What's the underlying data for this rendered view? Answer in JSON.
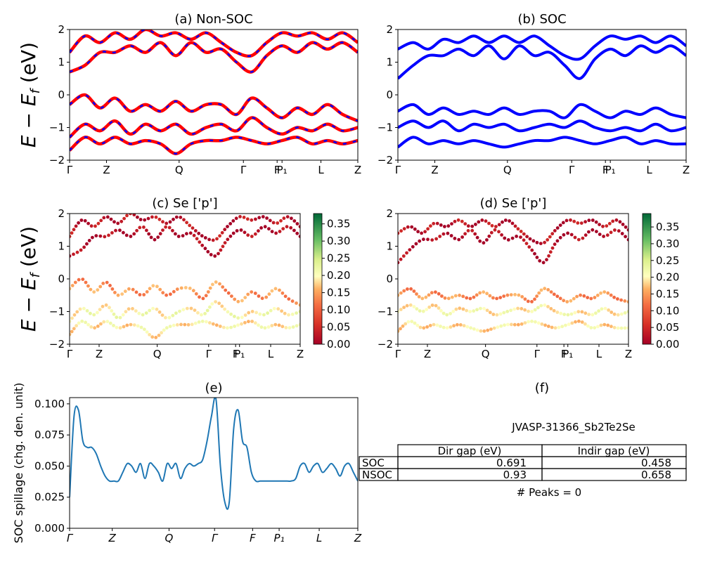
{
  "chart_data": [
    {
      "id": "a",
      "type": "line",
      "title": "(a) Non-SOC",
      "ylabel": "E − E_f (eV)",
      "ylim": [
        -2,
        2
      ],
      "yticks": [
        "2",
        "1",
        "0",
        "−1",
        "−2"
      ],
      "xtick_labels": [
        "Γ",
        "Z",
        "Q",
        "Γ",
        "F",
        "P₁",
        "L",
        "Z"
      ],
      "series": [
        {
          "values": [
            0.7,
            0.9,
            1.3,
            1.3,
            1.5,
            1.3,
            1.6,
            1.2,
            1.6,
            1.3,
            1.4,
            1.0,
            0.7,
            1.2,
            1.5,
            1.3,
            1.6,
            1.4,
            1.6,
            1.3
          ]
        },
        {
          "values": [
            1.3,
            1.8,
            1.6,
            1.9,
            1.7,
            2.0,
            1.8,
            1.9,
            1.7,
            1.9,
            1.6,
            1.3,
            1.2,
            1.6,
            1.9,
            1.8,
            1.9,
            1.7,
            1.9,
            1.6
          ]
        },
        {
          "values": [
            -0.3,
            0.0,
            -0.4,
            -0.1,
            -0.5,
            -0.3,
            -0.5,
            -0.2,
            -0.5,
            -0.3,
            -0.3,
            -0.6,
            -0.1,
            -0.4,
            -0.7,
            -0.4,
            -0.6,
            -0.3,
            -0.6,
            -0.8
          ]
        },
        {
          "values": [
            -1.3,
            -0.9,
            -1.1,
            -0.8,
            -1.2,
            -0.9,
            -1.1,
            -0.9,
            -1.2,
            -1.0,
            -0.9,
            -1.1,
            -0.7,
            -1.0,
            -1.2,
            -1.0,
            -1.1,
            -0.9,
            -1.1,
            -1.0
          ]
        },
        {
          "values": [
            -1.7,
            -1.3,
            -1.5,
            -1.3,
            -1.5,
            -1.4,
            -1.5,
            -1.8,
            -1.5,
            -1.4,
            -1.4,
            -1.3,
            -1.4,
            -1.5,
            -1.4,
            -1.3,
            -1.5,
            -1.4,
            -1.5,
            -1.4
          ]
        }
      ]
    },
    {
      "id": "b",
      "type": "line",
      "title": "(b) SOC",
      "ylim": [
        -2,
        2
      ],
      "yticks": [
        "2",
        "1",
        "0",
        "−1",
        "−2"
      ],
      "xtick_labels": [
        "Γ",
        "Z",
        "Q",
        "Γ",
        "F",
        "P₁",
        "L",
        "Z"
      ],
      "series": [
        {
          "values": [
            0.5,
            0.9,
            1.2,
            1.2,
            1.4,
            1.2,
            1.5,
            1.1,
            1.5,
            1.2,
            1.3,
            0.9,
            0.5,
            1.1,
            1.4,
            1.2,
            1.5,
            1.3,
            1.5,
            1.2
          ]
        },
        {
          "values": [
            1.4,
            1.6,
            1.4,
            1.7,
            1.6,
            1.8,
            1.6,
            1.8,
            1.6,
            1.8,
            1.5,
            1.2,
            1.1,
            1.5,
            1.8,
            1.7,
            1.8,
            1.6,
            1.8,
            1.5
          ]
        },
        {
          "values": [
            -0.5,
            -0.3,
            -0.6,
            -0.4,
            -0.6,
            -0.5,
            -0.6,
            -0.4,
            -0.6,
            -0.5,
            -0.5,
            -0.7,
            -0.3,
            -0.5,
            -0.7,
            -0.5,
            -0.6,
            -0.4,
            -0.6,
            -0.7
          ]
        },
        {
          "values": [
            -1.0,
            -0.8,
            -1.0,
            -0.8,
            -1.1,
            -0.9,
            -1.0,
            -0.9,
            -1.1,
            -1.0,
            -0.9,
            -1.0,
            -0.8,
            -1.0,
            -1.1,
            -1.0,
            -1.1,
            -0.9,
            -1.1,
            -1.0
          ]
        },
        {
          "values": [
            -1.6,
            -1.3,
            -1.5,
            -1.4,
            -1.5,
            -1.4,
            -1.5,
            -1.6,
            -1.5,
            -1.4,
            -1.4,
            -1.3,
            -1.4,
            -1.5,
            -1.4,
            -1.3,
            -1.5,
            -1.4,
            -1.5,
            -1.5
          ]
        }
      ]
    },
    {
      "id": "c",
      "type": "scatter",
      "title": "(c)  Se ['p']",
      "ylabel": "E − E_f (eV)",
      "ylim": [
        -2,
        2
      ],
      "yticks": [
        "2",
        "1",
        "0",
        "−1",
        "−2"
      ],
      "xtick_labels": [
        "Γ",
        "Z",
        "Q",
        "Γ",
        "F",
        "P₁",
        "L",
        "Z"
      ],
      "colorbar_ticks": [
        "0.35",
        "0.30",
        "0.25",
        "0.20",
        "0.15",
        "0.10",
        "0.05",
        "0.00"
      ],
      "colorbar_range": [
        0,
        0.38
      ]
    },
    {
      "id": "d",
      "type": "scatter",
      "title": "(d) Se ['p']",
      "ylim": [
        -2,
        2
      ],
      "yticks": [
        "2",
        "1",
        "0",
        "−1",
        "−2"
      ],
      "xtick_labels": [
        "Γ",
        "Z",
        "Q",
        "Γ",
        "F",
        "P₁",
        "L",
        "Z"
      ],
      "colorbar_ticks": [
        "0.35",
        "0.30",
        "0.25",
        "0.20",
        "0.15",
        "0.10",
        "0.05",
        "0.00"
      ],
      "colorbar_range": [
        0,
        0.39
      ]
    },
    {
      "id": "e",
      "type": "line",
      "title": "(e)",
      "ylabel": "SOC spillage (chg. den. unit)",
      "ylim": [
        0,
        0.105
      ],
      "yticks": [
        "0.100",
        "0.075",
        "0.050",
        "0.025",
        "0.000"
      ],
      "xtick_labels": [
        "Γ",
        "Z",
        "Q",
        "Γ",
        "F",
        "P₁",
        "L",
        "Z"
      ],
      "series": [
        {
          "values": [
            0.025,
            0.09,
            0.095,
            0.07,
            0.065,
            0.065,
            0.06,
            0.05,
            0.042,
            0.038,
            0.038,
            0.038,
            0.045,
            0.052,
            0.05,
            0.045,
            0.052,
            0.04,
            0.052,
            0.05,
            0.045,
            0.038,
            0.052,
            0.048,
            0.052,
            0.04,
            0.048,
            0.052,
            0.05,
            0.052,
            0.055,
            0.07,
            0.09,
            0.104,
            0.05,
            0.021,
            0.021,
            0.08,
            0.095,
            0.07,
            0.065,
            0.045,
            0.038,
            0.038,
            0.038,
            0.038,
            0.038,
            0.038,
            0.038,
            0.038,
            0.038,
            0.04,
            0.05,
            0.052,
            0.045,
            0.05,
            0.052,
            0.045,
            0.048,
            0.052,
            0.048,
            0.042,
            0.05,
            0.052,
            0.045,
            0.038
          ]
        }
      ]
    }
  ],
  "table_panel": {
    "title": "(f)",
    "caption": "JVASP-31366_Sb2Te2Se",
    "columns": [
      "Dir gap (eV)",
      "Indir gap (eV)"
    ],
    "rows": [
      {
        "label": "SOC",
        "dir": "0.691",
        "indir": "0.458"
      },
      {
        "label": "NSOC",
        "dir": "0.93",
        "indir": "0.658"
      }
    ],
    "peaks": "# Peaks = 0"
  },
  "colors": {
    "nonsoc_line": "#ff0000",
    "nonsoc_dash": "#0000ff",
    "soc_line": "#0000ff",
    "spillage_line": "#1f77b4"
  }
}
